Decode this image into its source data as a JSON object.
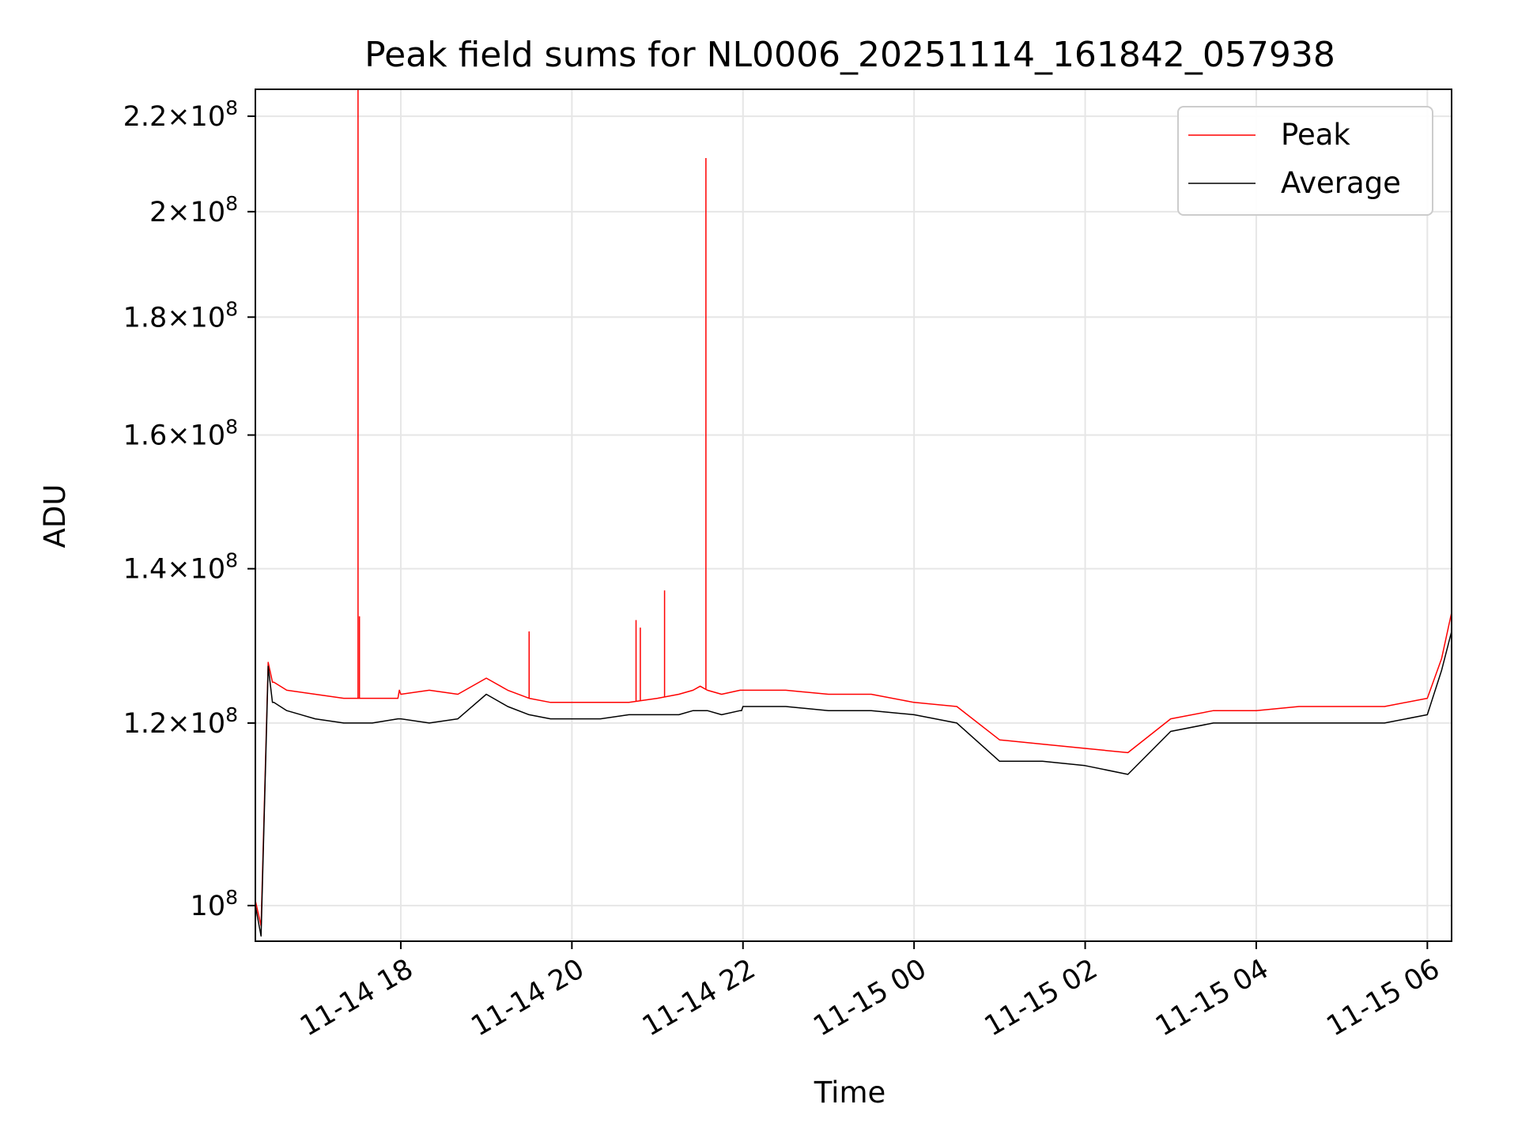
{
  "chart_data": {
    "type": "line",
    "title": "Peak field sums for NL0006_20251114_161842_057938",
    "xlabel": "Time",
    "ylabel": "ADU",
    "y_scale": "log",
    "grid": true,
    "legend_placement": "top-right",
    "xlim": [
      "2025-11-14 16:18",
      "2025-11-15 06:17"
    ],
    "ylim": [
      96500000,
      226000000
    ],
    "x_ticks": [
      {
        "value": "2025-11-14 18:00",
        "label": "11-14 18"
      },
      {
        "value": "2025-11-14 20:00",
        "label": "11-14 20"
      },
      {
        "value": "2025-11-14 22:00",
        "label": "11-14 22"
      },
      {
        "value": "2025-11-15 00:00",
        "label": "11-15 00"
      },
      {
        "value": "2025-11-15 02:00",
        "label": "11-15 02"
      },
      {
        "value": "2025-11-15 04:00",
        "label": "11-15 04"
      },
      {
        "value": "2025-11-15 06:00",
        "label": "11-15 06"
      }
    ],
    "y_ticks": [
      {
        "value": 100000000,
        "mantissa": "",
        "exponent": "8"
      },
      {
        "value": 120000000,
        "mantissa": "1.2",
        "exponent": "8"
      },
      {
        "value": 140000000,
        "mantissa": "1.4",
        "exponent": "8"
      },
      {
        "value": 160000000,
        "mantissa": "1.6",
        "exponent": "8"
      },
      {
        "value": 180000000,
        "mantissa": "1.8",
        "exponent": "8"
      },
      {
        "value": 200000000,
        "mantissa": "2",
        "exponent": "8"
      },
      {
        "value": 220000000,
        "mantissa": "2.2",
        "exponent": "8"
      }
    ],
    "series": [
      {
        "name": "Peak",
        "color": "#ff0000",
        "x": [
          "2025-11-14 16:18",
          "2025-11-14 16:22",
          "2025-11-14 16:27",
          "2025-11-14 16:30",
          "2025-11-14 16:31",
          "2025-11-14 16:40",
          "2025-11-14 17:00",
          "2025-11-14 17:20",
          "2025-11-14 17:40",
          "2025-11-14 17:58",
          "2025-11-14 17:59",
          "2025-11-14 18:00",
          "2025-11-14 18:20",
          "2025-11-14 18:40",
          "2025-11-14 19:00",
          "2025-11-14 19:15",
          "2025-11-14 19:30",
          "2025-11-14 19:45",
          "2025-11-14 20:00",
          "2025-11-14 20:20",
          "2025-11-14 20:40",
          "2025-11-14 21:00",
          "2025-11-14 21:15",
          "2025-11-14 21:25",
          "2025-11-14 21:30",
          "2025-11-14 21:35",
          "2025-11-14 21:45",
          "2025-11-14 21:58",
          "2025-11-14 21:59",
          "2025-11-14 22:00",
          "2025-11-14 22:30",
          "2025-11-14 23:00",
          "2025-11-14 23:30",
          "2025-11-15 00:00",
          "2025-11-15 00:30",
          "2025-11-15 01:00",
          "2025-11-15 01:30",
          "2025-11-15 02:00",
          "2025-11-15 02:30",
          "2025-11-15 03:00",
          "2025-11-15 03:30",
          "2025-11-15 04:00",
          "2025-11-15 04:30",
          "2025-11-15 05:00",
          "2025-11-15 05:30",
          "2025-11-15 06:00",
          "2025-11-15 06:10",
          "2025-11-15 06:17"
        ],
        "y": [
          100500000,
          98000000,
          127500000,
          125000000,
          125000000,
          124000000,
          123500000,
          123000000,
          123000000,
          123000000,
          124000000,
          123500000,
          124000000,
          123500000,
          125500000,
          124000000,
          123000000,
          122500000,
          122500000,
          122500000,
          122500000,
          123000000,
          123500000,
          124000000,
          124500000,
          124000000,
          123500000,
          124000000,
          124000000,
          124000000,
          124000000,
          123500000,
          123500000,
          122500000,
          122000000,
          118000000,
          117500000,
          117000000,
          116500000,
          120500000,
          121500000,
          121500000,
          122000000,
          122000000,
          122000000,
          123000000,
          128000000,
          134000000
        ]
      },
      {
        "name": "Average",
        "color": "#000000",
        "x": [
          "2025-11-14 16:18",
          "2025-11-14 16:22",
          "2025-11-14 16:27",
          "2025-11-14 16:30",
          "2025-11-14 16:31",
          "2025-11-14 16:40",
          "2025-11-14 17:00",
          "2025-11-14 17:20",
          "2025-11-14 17:40",
          "2025-11-14 17:58",
          "2025-11-14 17:59",
          "2025-11-14 18:00",
          "2025-11-14 18:20",
          "2025-11-14 18:40",
          "2025-11-14 19:00",
          "2025-11-14 19:15",
          "2025-11-14 19:30",
          "2025-11-14 19:45",
          "2025-11-14 20:00",
          "2025-11-14 20:20",
          "2025-11-14 20:40",
          "2025-11-14 21:00",
          "2025-11-14 21:15",
          "2025-11-14 21:25",
          "2025-11-14 21:30",
          "2025-11-14 21:35",
          "2025-11-14 21:45",
          "2025-11-14 21:58",
          "2025-11-14 21:59",
          "2025-11-14 22:00",
          "2025-11-14 22:30",
          "2025-11-14 23:00",
          "2025-11-14 23:30",
          "2025-11-15 00:00",
          "2025-11-15 00:30",
          "2025-11-15 01:00",
          "2025-11-15 01:30",
          "2025-11-15 02:00",
          "2025-11-15 02:30",
          "2025-11-15 03:00",
          "2025-11-15 03:30",
          "2025-11-15 04:00",
          "2025-11-15 04:30",
          "2025-11-15 05:00",
          "2025-11-15 05:30",
          "2025-11-15 06:00",
          "2025-11-15 06:10",
          "2025-11-15 06:17"
        ],
        "y": [
          100000000,
          97000000,
          127000000,
          122500000,
          122500000,
          121500000,
          120500000,
          120000000,
          120000000,
          120500000,
          120500000,
          120500000,
          120000000,
          120500000,
          123500000,
          122000000,
          121000000,
          120500000,
          120500000,
          120500000,
          121000000,
          121000000,
          121000000,
          121500000,
          121500000,
          121500000,
          121000000,
          121500000,
          121500000,
          122000000,
          122000000,
          121500000,
          121500000,
          121000000,
          120000000,
          115500000,
          115500000,
          115000000,
          114000000,
          119000000,
          120000000,
          120000000,
          120000000,
          120000000,
          120000000,
          121000000,
          126500000,
          131500000
        ]
      }
    ],
    "spikes": [
      {
        "series": "Peak",
        "x": "2025-11-14 17:30",
        "y": 226000000
      },
      {
        "series": "Peak",
        "x": "2025-11-14 17:31",
        "y": 133500000
      },
      {
        "series": "Peak",
        "x": "2025-11-14 19:30",
        "y": 131500000
      },
      {
        "series": "Peak",
        "x": "2025-11-14 20:45",
        "y": 133000000
      },
      {
        "series": "Peak",
        "x": "2025-11-14 20:48",
        "y": 132000000
      },
      {
        "series": "Peak",
        "x": "2025-11-14 21:05",
        "y": 137000000
      },
      {
        "series": "Peak",
        "x": "2025-11-14 21:34",
        "y": 211000000
      }
    ]
  }
}
